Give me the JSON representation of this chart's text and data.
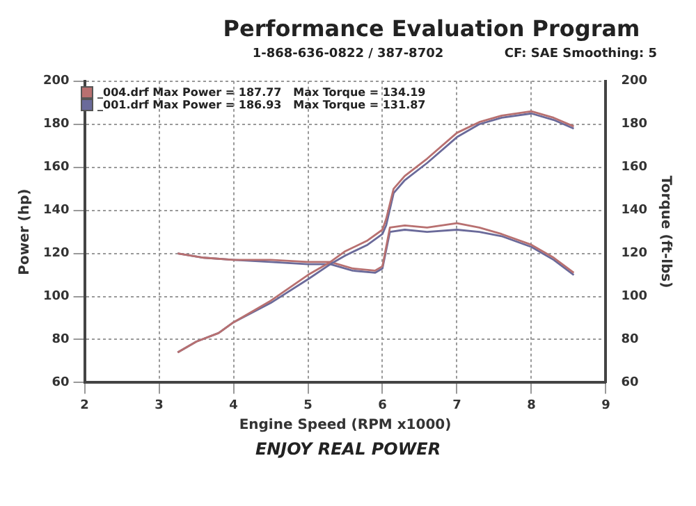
{
  "chart_data": {
    "type": "line",
    "title": "Performance Evaluation Program",
    "annotations": [
      "1-868-636-0822 / 387-8702",
      "CF: SAE  Smoothing: 5",
      "ENJOY REAL POWER"
    ],
    "xlabel": "Engine Speed (RPM x1000)",
    "ylabel": "Power (hp)",
    "y2label": "Torque (ft-lbs)",
    "xlim": [
      2,
      9
    ],
    "xticks": [
      2,
      3,
      4,
      5,
      6,
      7,
      8,
      9
    ],
    "ylim": [
      60,
      200
    ],
    "yticks": [
      60,
      80,
      100,
      120,
      140,
      160,
      180,
      200
    ],
    "y2lim": [
      60,
      200
    ],
    "y2ticks": [
      60,
      80,
      100,
      120,
      140,
      160,
      180,
      200
    ],
    "grid": true,
    "legend": "top left",
    "marker": "none",
    "line_style": "solid",
    "series": [
      {
        "name": "_004.drf Max Power = 187.77   Max Torque = 134.19",
        "color": "#b87070",
        "x": [
          3.25,
          3.5,
          3.8,
          4.0,
          4.5,
          5.0,
          5.3,
          5.5,
          5.8,
          6.0,
          6.05,
          6.15,
          6.3,
          6.6,
          7.0,
          7.3,
          7.6,
          8.0,
          8.3,
          8.57
        ],
        "values": [
          74,
          79,
          83,
          88,
          98,
          110,
          116,
          121,
          126,
          131,
          136,
          150,
          156,
          164,
          176,
          181,
          184,
          186,
          183,
          179
        ]
      },
      {
        "name": "_001.drf Max Power = 186.93   Max Torque = 131.87",
        "color": "#6a6a9a",
        "x": [
          3.25,
          3.5,
          3.8,
          4.0,
          4.5,
          5.0,
          5.3,
          5.5,
          5.8,
          6.0,
          6.05,
          6.15,
          6.3,
          6.6,
          7.0,
          7.3,
          7.6,
          8.0,
          8.3,
          8.57
        ],
        "values": [
          74,
          79,
          83,
          88,
          97,
          108,
          115,
          119,
          124,
          129,
          133,
          148,
          154,
          162,
          174,
          180,
          183,
          185,
          182,
          178
        ]
      },
      {
        "color": "#b87070",
        "x": [
          3.25,
          3.6,
          4.0,
          4.5,
          5.0,
          5.3,
          5.6,
          5.9,
          6.0,
          6.1,
          6.3,
          6.6,
          7.0,
          7.3,
          7.6,
          8.0,
          8.3,
          8.57
        ],
        "values": [
          120,
          118,
          117,
          117,
          116,
          116,
          113,
          112,
          114,
          132,
          133,
          132,
          134,
          132,
          129,
          124,
          118,
          111
        ]
      },
      {
        "color": "#6a6a9a",
        "x": [
          3.25,
          3.6,
          4.0,
          4.5,
          5.0,
          5.3,
          5.6,
          5.9,
          6.0,
          6.1,
          6.3,
          6.6,
          7.0,
          7.3,
          7.6,
          8.0,
          8.3,
          8.57
        ],
        "values": [
          120,
          118,
          117,
          116,
          115,
          115,
          112,
          111,
          113,
          130,
          131,
          130,
          131,
          130,
          128,
          123,
          117,
          110
        ]
      }
    ]
  }
}
